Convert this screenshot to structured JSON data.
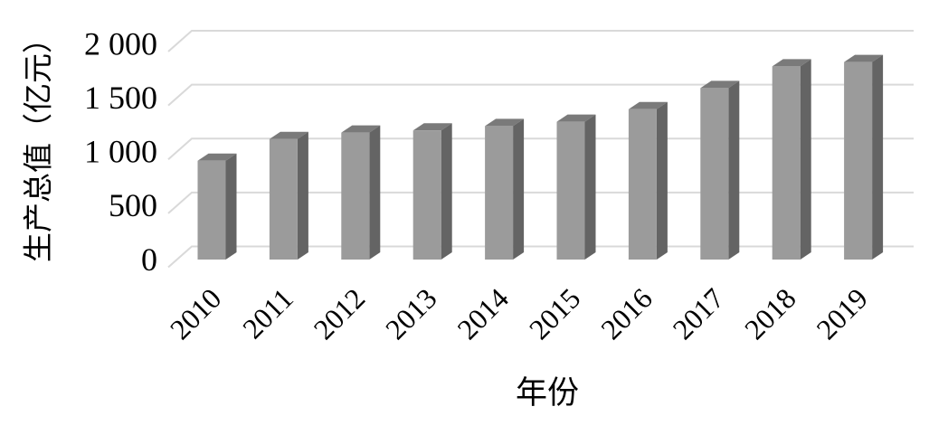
{
  "chart_data": {
    "type": "bar",
    "style": "3d-column-gray",
    "title": "",
    "xlabel": "年份",
    "ylabel": "生产总值（亿元）",
    "categories": [
      "2010",
      "2011",
      "2012",
      "2013",
      "2014",
      "2015",
      "2016",
      "2017",
      "2018",
      "2019"
    ],
    "values": [
      910,
      1110,
      1170,
      1190,
      1230,
      1270,
      1385,
      1580,
      1780,
      1820
    ],
    "ylim": [
      0,
      2000
    ],
    "ytick_interval": 500,
    "ytick_labels": [
      "0",
      "500",
      "1 000",
      "1 500",
      "2 000"
    ],
    "grid": true,
    "legend": false,
    "x_tick_rotation_deg": -45,
    "colors": {
      "bar_front": "#9b9b9b",
      "bar_top": "#7a7a7a",
      "bar_side": "#646464",
      "gridline": "#d9d9d9",
      "text": "#000000",
      "background": "#ffffff"
    }
  }
}
